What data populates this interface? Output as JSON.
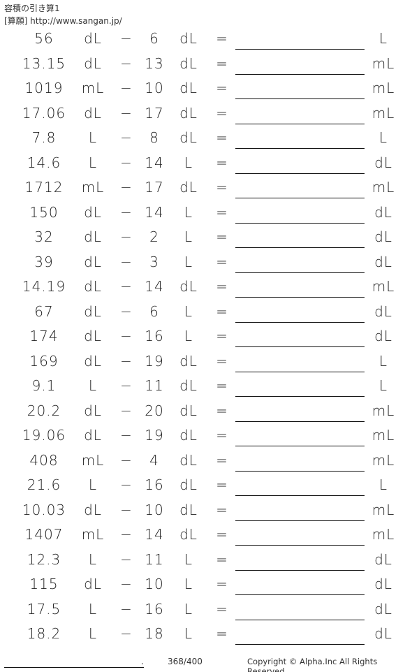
{
  "header": {
    "title": "容積の引き算1",
    "source": "[算願] http://www.sangan.jp/"
  },
  "operator": "−",
  "equals": "=",
  "problems": [
    {
      "a": "56",
      "ua": "dL",
      "b": "6",
      "ub": "dL",
      "ur": "L"
    },
    {
      "a": "13.15",
      "ua": "dL",
      "b": "13",
      "ub": "dL",
      "ur": "mL"
    },
    {
      "a": "1019",
      "ua": "mL",
      "b": "10",
      "ub": "dL",
      "ur": "mL"
    },
    {
      "a": "17.06",
      "ua": "dL",
      "b": "17",
      "ub": "dL",
      "ur": "mL"
    },
    {
      "a": "7.8",
      "ua": "L",
      "b": "8",
      "ub": "dL",
      "ur": "L"
    },
    {
      "a": "14.6",
      "ua": "L",
      "b": "14",
      "ub": "L",
      "ur": "dL"
    },
    {
      "a": "1712",
      "ua": "mL",
      "b": "17",
      "ub": "dL",
      "ur": "mL"
    },
    {
      "a": "150",
      "ua": "dL",
      "b": "14",
      "ub": "L",
      "ur": "dL"
    },
    {
      "a": "32",
      "ua": "dL",
      "b": "2",
      "ub": "L",
      "ur": "dL"
    },
    {
      "a": "39",
      "ua": "dL",
      "b": "3",
      "ub": "L",
      "ur": "dL"
    },
    {
      "a": "14.19",
      "ua": "dL",
      "b": "14",
      "ub": "dL",
      "ur": "mL"
    },
    {
      "a": "67",
      "ua": "dL",
      "b": "6",
      "ub": "L",
      "ur": "dL"
    },
    {
      "a": "174",
      "ua": "dL",
      "b": "16",
      "ub": "L",
      "ur": "dL"
    },
    {
      "a": "169",
      "ua": "dL",
      "b": "19",
      "ub": "dL",
      "ur": "L"
    },
    {
      "a": "9.1",
      "ua": "L",
      "b": "11",
      "ub": "dL",
      "ur": "L"
    },
    {
      "a": "20.2",
      "ua": "dL",
      "b": "20",
      "ub": "dL",
      "ur": "mL"
    },
    {
      "a": "19.06",
      "ua": "dL",
      "b": "19",
      "ub": "dL",
      "ur": "mL"
    },
    {
      "a": "408",
      "ua": "mL",
      "b": "4",
      "ub": "dL",
      "ur": "mL"
    },
    {
      "a": "21.6",
      "ua": "L",
      "b": "16",
      "ub": "dL",
      "ur": "L"
    },
    {
      "a": "10.03",
      "ua": "dL",
      "b": "10",
      "ub": "dL",
      "ur": "mL"
    },
    {
      "a": "1407",
      "ua": "mL",
      "b": "14",
      "ub": "dL",
      "ur": "mL"
    },
    {
      "a": "12.3",
      "ua": "L",
      "b": "11",
      "ub": "L",
      "ur": "dL"
    },
    {
      "a": "115",
      "ua": "dL",
      "b": "10",
      "ub": "L",
      "ur": "dL"
    },
    {
      "a": "17.5",
      "ua": "L",
      "b": "16",
      "ub": "L",
      "ur": "dL"
    },
    {
      "a": "18.2",
      "ua": "L",
      "b": "18",
      "ub": "L",
      "ur": "dL"
    }
  ],
  "footer": {
    "name_dot": ".",
    "page": "368/400",
    "copyright": "Copyright © Alpha.Inc All Rights Reserved."
  }
}
